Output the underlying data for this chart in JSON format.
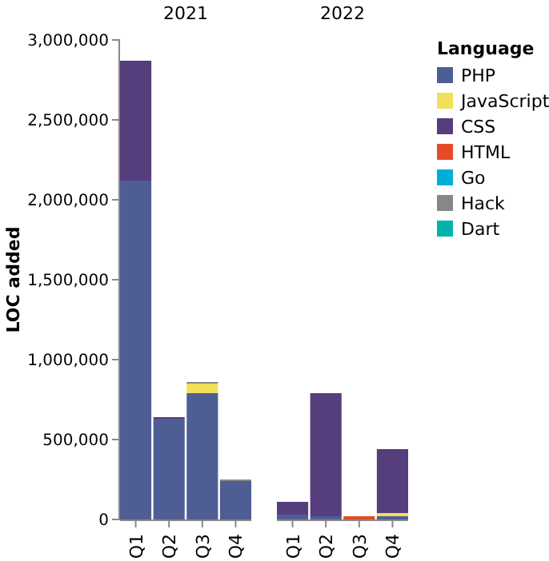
{
  "chart_data": [
    {
      "type": "bar",
      "title": "2021",
      "ylabel": "LOC added",
      "stacked": true,
      "categories": [
        "Q1",
        "Q2",
        "Q3",
        "Q4"
      ],
      "ylim": [
        0,
        3000000
      ],
      "yticks": [
        {
          "value": 0,
          "label": "0"
        },
        {
          "value": 500000,
          "label": "500,000"
        },
        {
          "value": 1000000,
          "label": "1,000,000"
        },
        {
          "value": 1500000,
          "label": "1,500,000"
        },
        {
          "value": 2000000,
          "label": "2,000,000"
        },
        {
          "value": 2500000,
          "label": "2,500,000"
        },
        {
          "value": 3000000,
          "label": "3,000,000"
        }
      ],
      "legend": false,
      "series": [
        {
          "color": "#4f5d95",
          "values": [
            2120000,
            630000,
            790000,
            240000
          ]
        },
        {
          "color": "#f1e05a",
          "values": [
            null,
            null,
            60000,
            null
          ]
        },
        {
          "color": "#563d7c",
          "values": [
            750000,
            10000,
            null,
            null
          ]
        },
        {
          "color": "#878787",
          "values": [
            null,
            null,
            10000,
            10000
          ]
        }
      ]
    },
    {
      "type": "bar",
      "title": "2022",
      "stacked": true,
      "categories": [
        "Q1",
        "Q2",
        "Q3",
        "Q4"
      ],
      "ylim": [
        0,
        3000000
      ],
      "tick_labels": "x",
      "legend": "right",
      "legend_title": "Language",
      "series": [
        {
          "name": "PHP",
          "color": "#4f5d95",
          "values": [
            30000,
            20000,
            null,
            20000
          ]
        },
        {
          "name": "JavaScript",
          "color": "#f1e05a",
          "values": [
            null,
            null,
            null,
            20000
          ]
        },
        {
          "name": "CSS",
          "color": "#563d7c",
          "values": [
            80000,
            770000,
            null,
            400000
          ]
        },
        {
          "name": "HTML",
          "color": "#e34c26",
          "values": [
            null,
            null,
            20000,
            null
          ]
        },
        {
          "name": "Go",
          "color": "#00add8",
          "values": [
            null,
            null,
            null,
            null
          ]
        },
        {
          "name": "Hack",
          "color": "#878787",
          "values": [
            null,
            null,
            null,
            null
          ]
        },
        {
          "name": "Dart",
          "color": "#00b4ab",
          "values": [
            null,
            null,
            null,
            null
          ]
        }
      ]
    }
  ]
}
